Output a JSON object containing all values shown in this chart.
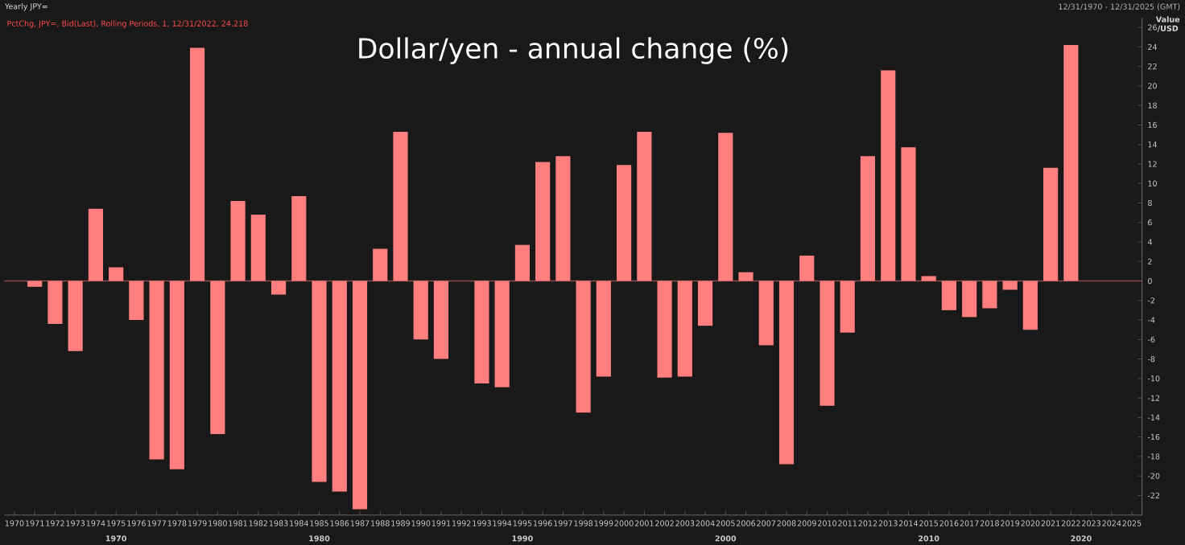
{
  "chart_data": {
    "type": "bar",
    "title": "Dollar/yen - annual change (%)",
    "ylabel": "Value /USD",
    "annotations": [
      "Yearly JPY=",
      "PctChg, JPY=, Bid(Last), Rolling Periods, 1, 12/31/2022, 24.218",
      "12/31/1970 - 12/31/2025 (GMT)",
      "1970",
      "1980",
      "1990",
      "2000",
      "2010",
      "2020"
    ],
    "categories": [
      "1970",
      "1971",
      "1972",
      "1973",
      "1974",
      "1975",
      "1976",
      "1977",
      "1978",
      "1979",
      "1980",
      "1981",
      "1982",
      "1983",
      "1984",
      "1985",
      "1986",
      "1987",
      "1988",
      "1989",
      "1990",
      "1991",
      "1992",
      "1993",
      "1994",
      "1995",
      "1996",
      "1997",
      "1998",
      "1999",
      "2000",
      "2001",
      "2002",
      "2003",
      "2004",
      "2005",
      "2006",
      "2007",
      "2008",
      "2009",
      "2010",
      "2011",
      "2012",
      "2013",
      "2014",
      "2015",
      "2016",
      "2017",
      "2018",
      "2019",
      "2020",
      "2021",
      "2022",
      "2023",
      "2024",
      "2025"
    ],
    "values": [
      null,
      -0.6,
      -4.4,
      -7.2,
      7.4,
      1.4,
      -4.0,
      -18.3,
      -19.3,
      23.9,
      -15.7,
      8.2,
      6.8,
      -1.4,
      8.7,
      -20.6,
      -21.6,
      -23.4,
      3.3,
      15.3,
      -6.0,
      -8.0,
      0.0,
      -10.5,
      -10.9,
      3.7,
      12.2,
      12.8,
      -13.5,
      -9.8,
      11.9,
      15.3,
      -9.9,
      -9.8,
      -4.6,
      15.2,
      0.9,
      -6.6,
      -18.8,
      2.6,
      -12.8,
      -5.3,
      12.8,
      21.6,
      13.7,
      0.5,
      -3.0,
      -3.7,
      -2.8,
      -0.9,
      -5.0,
      11.6,
      24.2,
      null,
      null,
      null
    ],
    "color": "#ff7f7f",
    "ylim": [
      -24,
      27
    ],
    "yticks": [
      -22,
      -20,
      -18,
      -16,
      -14,
      -12,
      -10,
      -8,
      -6,
      -4,
      -2,
      0,
      2,
      4,
      6,
      8,
      10,
      12,
      14,
      16,
      18,
      20,
      22,
      24,
      26
    ],
    "ref_lines": [
      {
        "axis": "y",
        "value": 0,
        "color": "#8b4a4a"
      }
    ],
    "grid": false
  }
}
